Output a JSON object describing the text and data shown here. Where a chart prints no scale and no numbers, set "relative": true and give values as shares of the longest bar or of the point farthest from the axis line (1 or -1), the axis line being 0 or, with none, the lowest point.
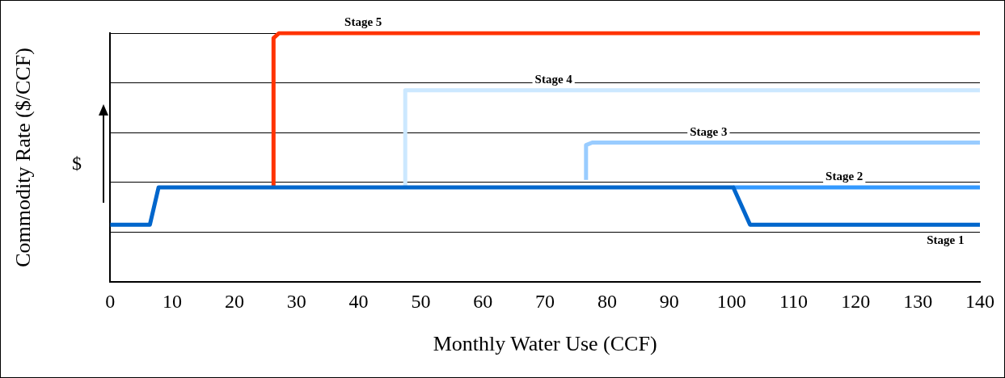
{
  "chart_data": {
    "type": "line",
    "relative": true,
    "xlabel": "Monthly Water Use (CCF)",
    "ylabel": "Commodity Rate ($/CCF)",
    "annotations": [
      "$"
    ],
    "xlim": [
      0,
      140
    ],
    "xticks": [
      0,
      10,
      20,
      30,
      40,
      50,
      60,
      70,
      80,
      90,
      100,
      110,
      120,
      130,
      140
    ],
    "grid": "y",
    "legend": false,
    "marker": "none",
    "line_style": "solid",
    "series": [
      {
        "name": "Stage 1",
        "color": "#0066cc",
        "x": [
          0,
          6.4,
          7.8,
          100.3,
          103,
          140
        ],
        "values": [
          0.23,
          0.23,
          0.38,
          0.38,
          0.23,
          0.23
        ]
      },
      {
        "name": "Stage 2",
        "color": "#3399ff",
        "x": [
          100.3,
          140
        ],
        "values": [
          0.38,
          0.38
        ]
      },
      {
        "name": "Stage 3",
        "color": "#99ccff",
        "x": [
          76.6,
          76.6,
          77.6,
          140
        ],
        "values": [
          0.41,
          0.55,
          0.56,
          0.56
        ]
      },
      {
        "name": "Stage 4",
        "color": "#cce8ff",
        "x": [
          47.5,
          47.5,
          48.5,
          140
        ],
        "values": [
          0.38,
          0.77,
          0.77,
          0.77
        ]
      },
      {
        "name": "Stage 5",
        "color": "#ff3300",
        "x": [
          26.3,
          26.3,
          27.2,
          140
        ],
        "values": [
          0.38,
          0.98,
          1,
          1
        ]
      }
    ]
  }
}
